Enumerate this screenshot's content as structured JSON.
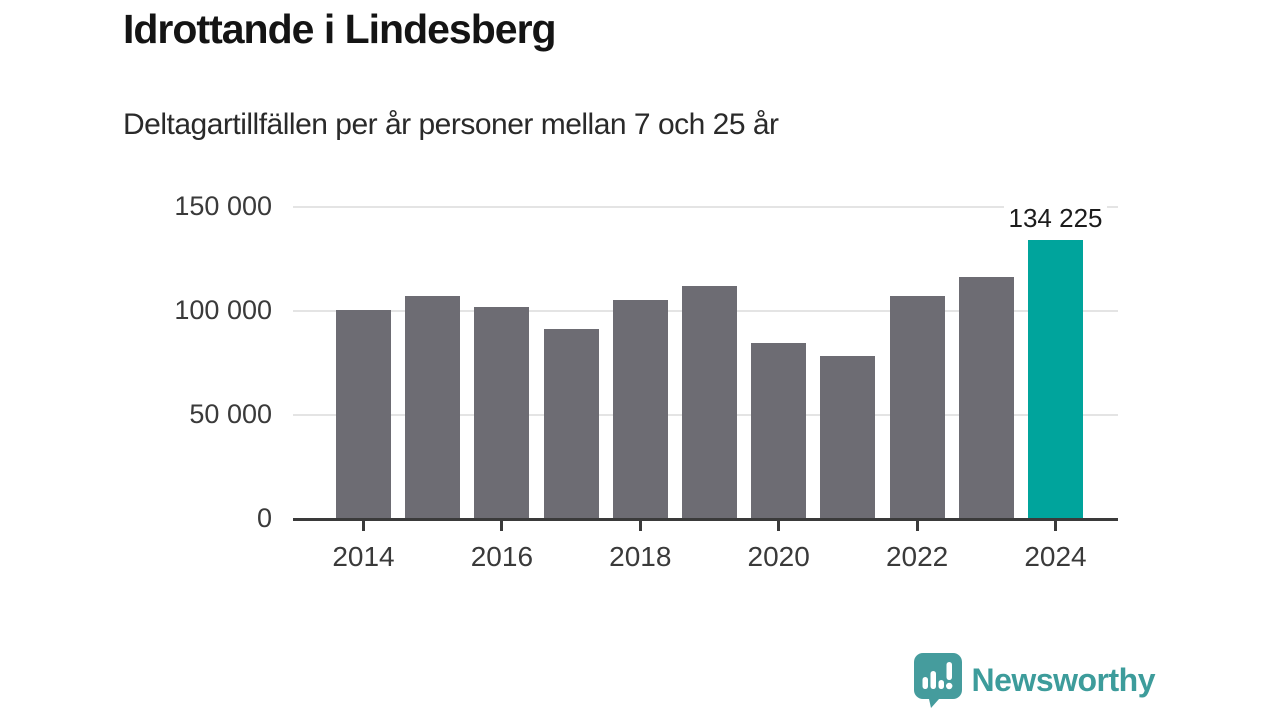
{
  "header": {
    "title": "Idrottande i Lindesberg",
    "subtitle": "Deltagartillfällen per år personer mellan 7 och 25 år"
  },
  "chart_data": {
    "type": "bar",
    "categories": [
      2014,
      2015,
      2016,
      2017,
      2018,
      2019,
      2020,
      2021,
      2022,
      2023,
      2024
    ],
    "values": [
      100300,
      107400,
      102000,
      91300,
      105200,
      111900,
      84600,
      78300,
      107000,
      116500,
      134225
    ],
    "title": "Idrottande i Lindesberg",
    "subtitle": "Deltagartillfällen per år personer mellan 7 och 25 år",
    "xlabel": "",
    "ylabel": "",
    "ylim": [
      0,
      150000
    ],
    "grid": true,
    "y_ticks": [
      {
        "value": 150000,
        "label": "150 000"
      },
      {
        "value": 100000,
        "label": "100 000"
      },
      {
        "value": 50000,
        "label": "50 000"
      },
      {
        "value": 0,
        "label": "0"
      }
    ],
    "x_tick_labels": [
      "2014",
      "2016",
      "2018",
      "2020",
      "2022",
      "2024"
    ],
    "highlight_index": 10,
    "highlight_value_label": "134 225",
    "bar_color": "#6d6c73",
    "highlight_color": "#00a49c",
    "gridline_color": "#e4e4e4",
    "axis_color": "#3a3a3a"
  },
  "branding": {
    "name": "Newsworthy",
    "logo_icon": "bar-chart-speech-bubble",
    "logo_color": "#459c9d",
    "text_color": "#3d9c9b"
  }
}
